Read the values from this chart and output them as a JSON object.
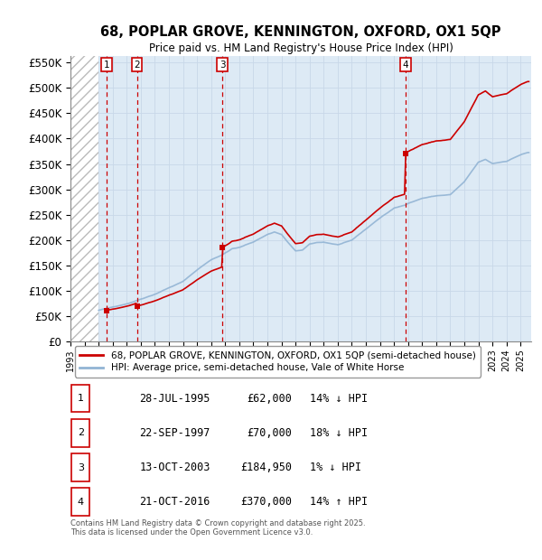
{
  "title": "68, POPLAR GROVE, KENNINGTON, OXFORD, OX1 5QP",
  "subtitle": "Price paid vs. HM Land Registry's House Price Index (HPI)",
  "ylim": [
    0,
    562500
  ],
  "yticks": [
    0,
    50000,
    100000,
    150000,
    200000,
    250000,
    300000,
    350000,
    400000,
    450000,
    500000,
    550000
  ],
  "ytick_labels": [
    "£0",
    "£50K",
    "£100K",
    "£150K",
    "£200K",
    "£250K",
    "£300K",
    "£350K",
    "£400K",
    "£450K",
    "£500K",
    "£550K"
  ],
  "xlim_start": 1993.0,
  "xlim_end": 2025.75,
  "hatch_end": 1995.0,
  "hpi_color": "#92b4d4",
  "price_color": "#cc0000",
  "grid_color": "#c8d8e8",
  "bg_color": "#ddeaf5",
  "sale_events": [
    {
      "num": 1,
      "year": 1995.57,
      "price": 62000,
      "label": "28-JUL-1995",
      "price_label": "£62,000",
      "pct": "14% ↓ HPI"
    },
    {
      "num": 2,
      "year": 1997.72,
      "price": 70000,
      "label": "22-SEP-1997",
      "price_label": "£70,000",
      "pct": "18% ↓ HPI"
    },
    {
      "num": 3,
      "year": 2003.79,
      "price": 184950,
      "label": "13-OCT-2003",
      "price_label": "£184,950",
      "pct": "1% ↓ HPI"
    },
    {
      "num": 4,
      "year": 2016.8,
      "price": 370000,
      "label": "21-OCT-2016",
      "price_label": "£370,000",
      "pct": "14% ↑ HPI"
    }
  ],
  "legend_entries": [
    "68, POPLAR GROVE, KENNINGTON, OXFORD, OX1 5QP (semi-detached house)",
    "HPI: Average price, semi-detached house, Vale of White Horse"
  ],
  "footnote": "Contains HM Land Registry data © Crown copyright and database right 2025.\nThis data is licensed under the Open Government Licence v3.0."
}
